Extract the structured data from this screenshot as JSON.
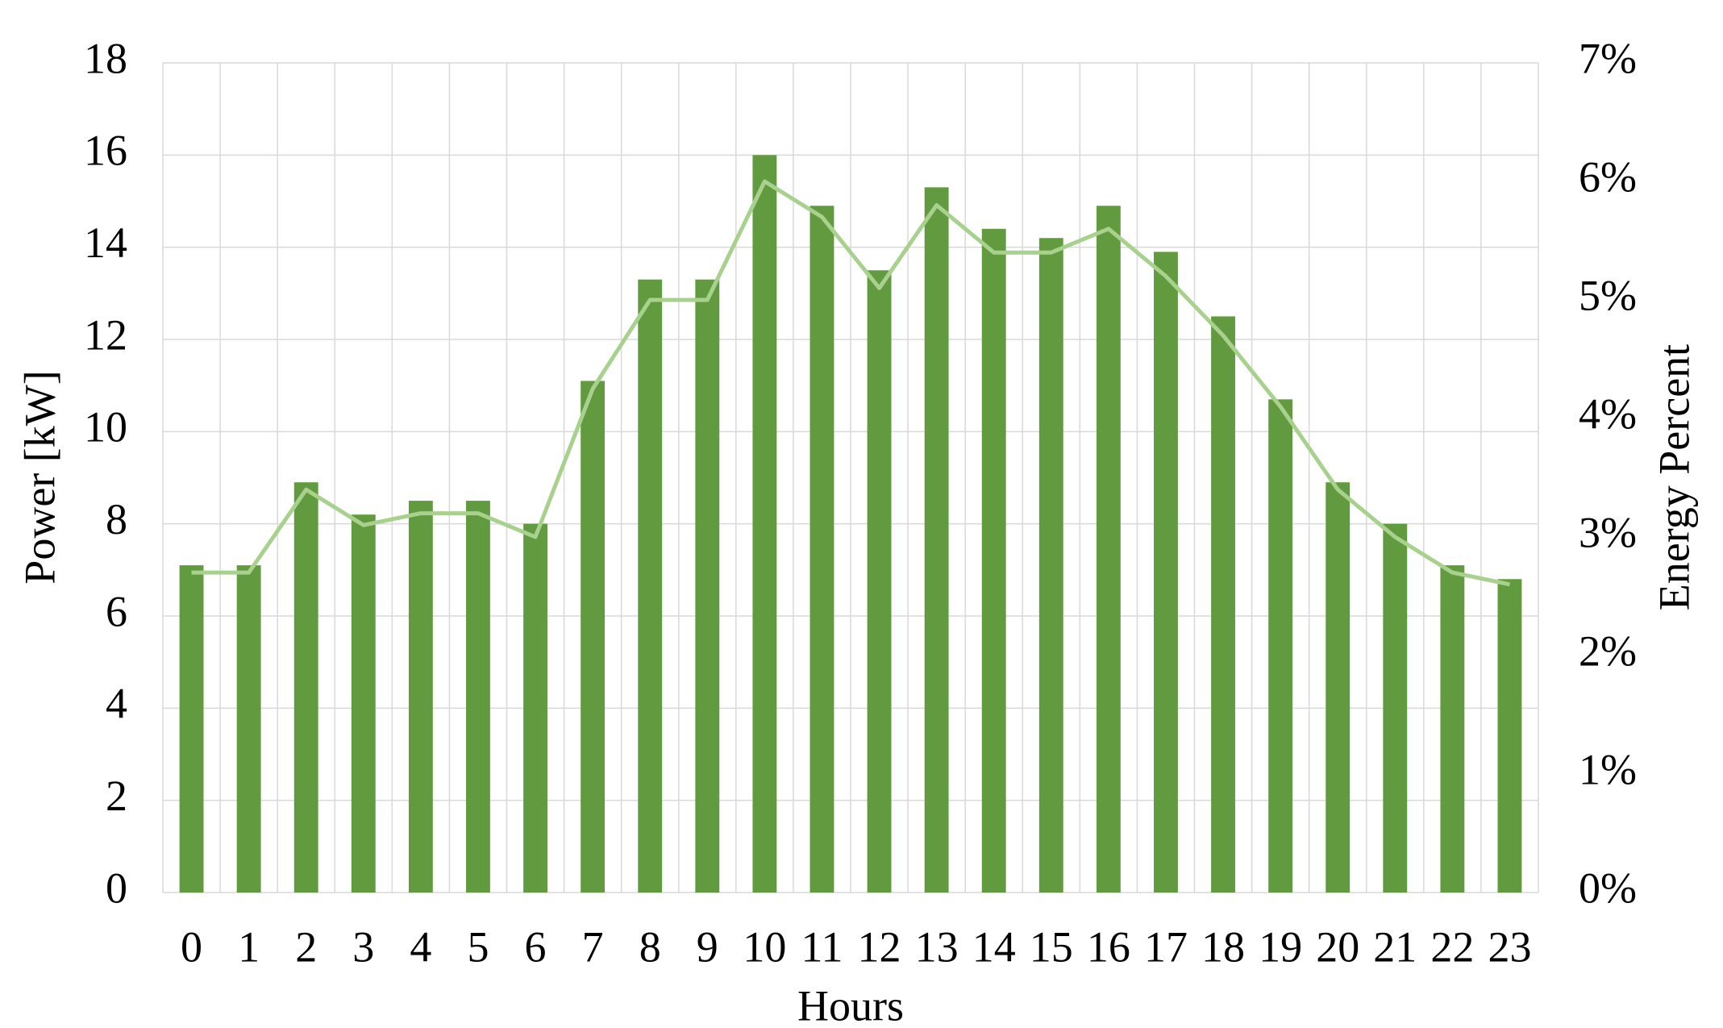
{
  "chart_data": {
    "type": "bar-line",
    "x_label": "Hours",
    "y_label": "Power [kW]",
    "y2_label": "Energy Percent",
    "categories": [
      "0",
      "1",
      "2",
      "3",
      "4",
      "5",
      "6",
      "7",
      "8",
      "9",
      "10",
      "11",
      "12",
      "13",
      "14",
      "15",
      "16",
      "17",
      "18",
      "19",
      "20",
      "21",
      "22",
      "23"
    ],
    "series": [
      {
        "type": "bar",
        "color": "#629a3f",
        "axis": "y",
        "values": [
          7.1,
          7.1,
          8.9,
          8.2,
          8.5,
          8.5,
          8.0,
          11.1,
          13.3,
          13.3,
          16.0,
          14.9,
          13.5,
          15.3,
          14.4,
          14.2,
          14.9,
          13.9,
          12.5,
          10.7,
          8.9,
          8.0,
          7.1,
          6.8
        ]
      },
      {
        "type": "line",
        "color": "#a9d18e",
        "axis": "y2",
        "values": [
          2.7,
          2.7,
          3.4,
          3.1,
          3.2,
          3.2,
          3.0,
          4.25,
          5.0,
          5.0,
          6.0,
          5.7,
          5.1,
          5.8,
          5.4,
          5.4,
          5.6,
          5.2,
          4.7,
          4.1,
          3.4,
          3.0,
          2.7,
          2.6
        ]
      }
    ],
    "ylim": [
      0,
      18
    ],
    "yticks": [
      0,
      2,
      4,
      6,
      8,
      10,
      12,
      14,
      16,
      18
    ],
    "y2lim": [
      0,
      7
    ],
    "y2ticks": [
      {
        "value": 0,
        "label": "0%"
      },
      {
        "value": 1,
        "label": "1%"
      },
      {
        "value": 2,
        "label": "2%"
      },
      {
        "value": 3,
        "label": "3%"
      },
      {
        "value": 4,
        "label": "4%"
      },
      {
        "value": 5,
        "label": "5%"
      },
      {
        "value": 6,
        "label": "6%"
      },
      {
        "value": 7,
        "label": "7%"
      }
    ],
    "grid": true
  }
}
